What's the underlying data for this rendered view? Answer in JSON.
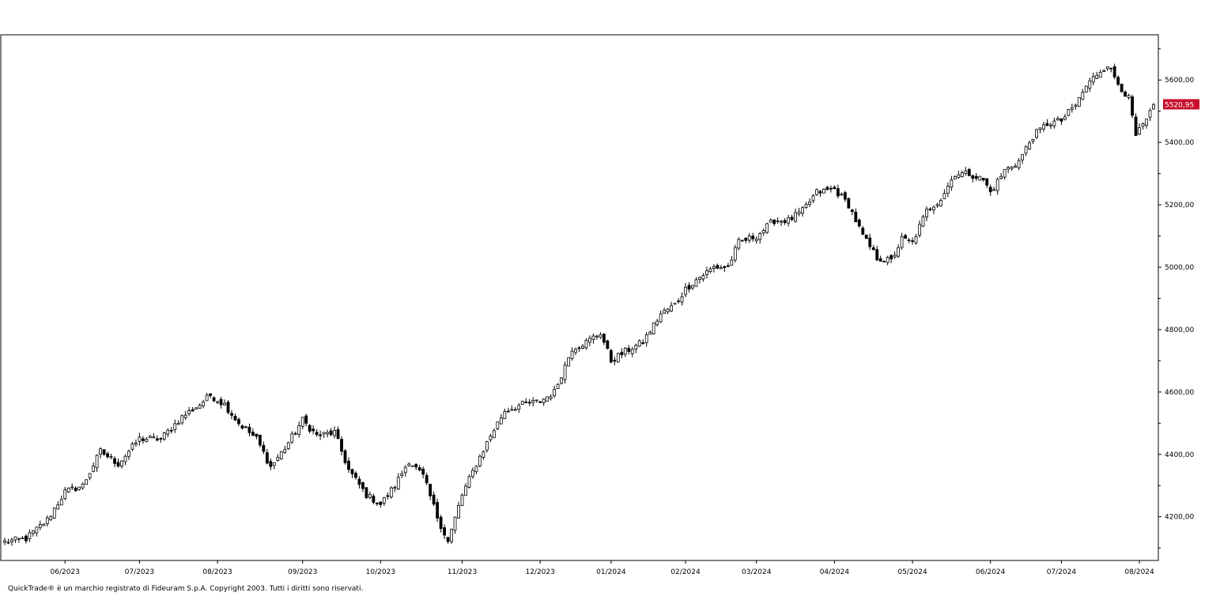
{
  "chart_data": {
    "type": "candlestick",
    "last_price_label": "5520,95",
    "last_price": 5520.95,
    "ylim": [
      4060,
      5745
    ],
    "y_ticks": [
      {
        "value": 4200,
        "label": "4200,00"
      },
      {
        "value": 4400,
        "label": "4400,00"
      },
      {
        "value": 4600,
        "label": "4600,00"
      },
      {
        "value": 4800,
        "label": "4800,00"
      },
      {
        "value": 5000,
        "label": "5000,00"
      },
      {
        "value": 5200,
        "label": "5200,00"
      },
      {
        "value": 5400,
        "label": "5400,00"
      },
      {
        "value": 5600,
        "label": "5600,00"
      }
    ],
    "x_ticks": [
      "06/2023",
      "07/2023",
      "08/2023",
      "09/2023",
      "10/2023",
      "11/2023",
      "12/2023",
      "01/2024",
      "02/2024",
      "03/2024",
      "04/2024",
      "05/2024",
      "06/2024",
      "07/2024",
      "08/2024"
    ],
    "x_tick_index": [
      17,
      38,
      60,
      84,
      106,
      129,
      151,
      171,
      192,
      212,
      234,
      256,
      278,
      298,
      320
    ],
    "anchors": [
      [
        0,
        4120
      ],
      [
        6,
        4130
      ],
      [
        12,
        4190
      ],
      [
        17,
        4280
      ],
      [
        22,
        4300
      ],
      [
        27,
        4410
      ],
      [
        32,
        4370
      ],
      [
        38,
        4450
      ],
      [
        44,
        4450
      ],
      [
        50,
        4520
      ],
      [
        55,
        4560
      ],
      [
        58,
        4590
      ],
      [
        62,
        4560
      ],
      [
        66,
        4500
      ],
      [
        71,
        4450
      ],
      [
        75,
        4360
      ],
      [
        79,
        4420
      ],
      [
        84,
        4510
      ],
      [
        88,
        4460
      ],
      [
        93,
        4470
      ],
      [
        97,
        4350
      ],
      [
        102,
        4270
      ],
      [
        106,
        4240
      ],
      [
        110,
        4300
      ],
      [
        114,
        4380
      ],
      [
        118,
        4330
      ],
      [
        122,
        4200
      ],
      [
        125,
        4120
      ],
      [
        129,
        4270
      ],
      [
        133,
        4370
      ],
      [
        137,
        4460
      ],
      [
        141,
        4540
      ],
      [
        146,
        4560
      ],
      [
        151,
        4570
      ],
      [
        155,
        4600
      ],
      [
        160,
        4740
      ],
      [
        164,
        4760
      ],
      [
        168,
        4790
      ],
      [
        171,
        4700
      ],
      [
        175,
        4730
      ],
      [
        180,
        4760
      ],
      [
        185,
        4850
      ],
      [
        189,
        4880
      ],
      [
        192,
        4930
      ],
      [
        195,
        4960
      ],
      [
        200,
        5000
      ],
      [
        204,
        5000
      ],
      [
        207,
        5080
      ],
      [
        212,
        5100
      ],
      [
        217,
        5150
      ],
      [
        221,
        5150
      ],
      [
        225,
        5180
      ],
      [
        229,
        5240
      ],
      [
        234,
        5250
      ],
      [
        238,
        5200
      ],
      [
        242,
        5100
      ],
      [
        246,
        5030
      ],
      [
        250,
        5020
      ],
      [
        253,
        5090
      ],
      [
        256,
        5080
      ],
      [
        260,
        5180
      ],
      [
        264,
        5220
      ],
      [
        268,
        5300
      ],
      [
        272,
        5300
      ],
      [
        276,
        5280
      ],
      [
        278,
        5240
      ],
      [
        282,
        5310
      ],
      [
        286,
        5340
      ],
      [
        290,
        5420
      ],
      [
        294,
        5460
      ],
      [
        298,
        5470
      ],
      [
        302,
        5520
      ],
      [
        305,
        5580
      ],
      [
        308,
        5620
      ],
      [
        311,
        5650
      ],
      [
        314,
        5590
      ],
      [
        317,
        5540
      ],
      [
        319,
        5420
      ],
      [
        322,
        5470
      ],
      [
        324,
        5520
      ]
    ],
    "n_candles": 325
  },
  "copyright": "QuickTrade® è un marchio registrato di Fideuram S.p.A. Copyright 2003. Tutti i diritti sono riservati.",
  "colors": {
    "up_fill": "#ffffff",
    "down_fill": "#000000",
    "candle_stroke": "#000000",
    "axis": "#000000",
    "price_tag_bg": "#c8102e",
    "price_tag_text": "#ffffff"
  }
}
